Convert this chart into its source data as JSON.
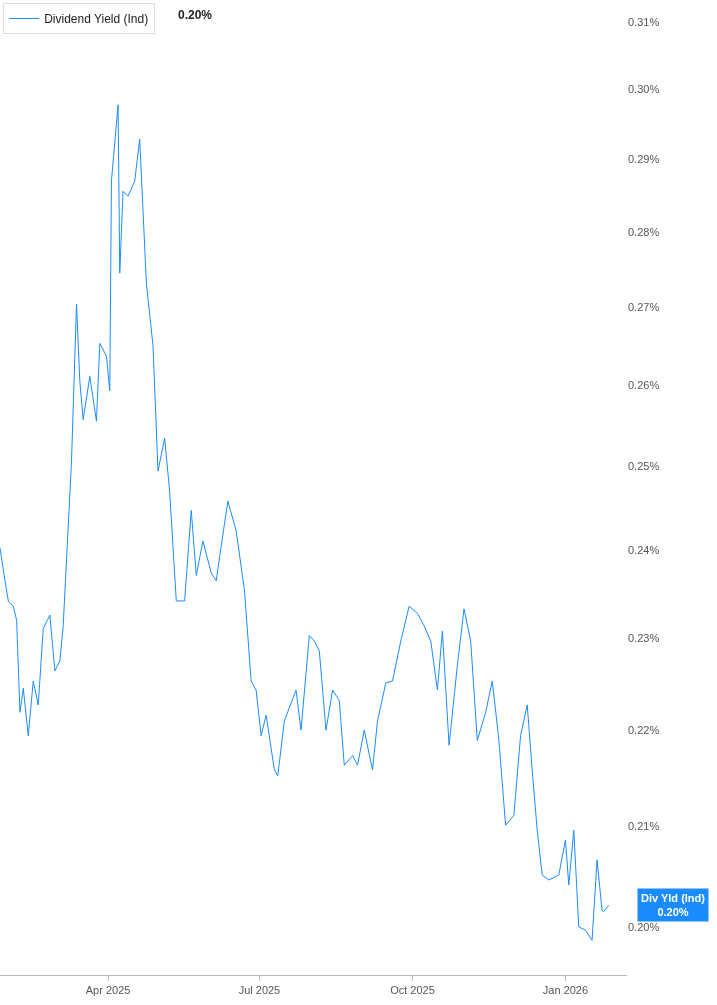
{
  "chart_data": {
    "type": "line",
    "log": "y",
    "grid": false,
    "legend": "top left",
    "marker": "none",
    "line_style": "solid",
    "x": [
      "2025-01-26",
      "2025-01-29",
      "2025-01-31",
      "2025-02-03",
      "2025-02-05",
      "2025-02-07",
      "2025-02-09",
      "2025-02-12",
      "2025-02-15",
      "2025-02-18",
      "2025-02-21",
      "2025-02-25",
      "2025-02-28",
      "2025-03-03",
      "2025-03-05",
      "2025-03-10",
      "2025-03-13",
      "2025-03-15",
      "2025-03-17",
      "2025-03-21",
      "2025-03-25",
      "2025-03-27",
      "2025-03-31",
      "2025-04-02",
      "2025-04-03",
      "2025-04-07",
      "2025-04-08",
      "2025-04-10",
      "2025-04-13",
      "2025-04-17",
      "2025-04-20",
      "2025-04-24",
      "2025-04-28",
      "2025-05-01",
      "2025-05-05",
      "2025-05-08",
      "2025-05-12",
      "2025-05-17",
      "2025-05-21",
      "2025-05-24",
      "2025-05-28",
      "2025-06-02",
      "2025-06-05",
      "2025-06-08",
      "2025-06-12",
      "2025-06-17",
      "2025-06-22",
      "2025-06-26",
      "2025-06-29",
      "2025-07-02",
      "2025-07-05",
      "2025-07-10",
      "2025-07-12",
      "2025-07-16",
      "2025-07-23",
      "2025-07-26",
      "2025-07-31",
      "2025-08-03",
      "2025-08-06",
      "2025-08-10",
      "2025-08-14",
      "2025-08-18",
      "2025-08-21",
      "2025-08-26",
      "2025-08-29",
      "2025-09-02",
      "2025-09-07",
      "2025-09-10",
      "2025-09-15",
      "2025-09-19",
      "2025-09-24",
      "2025-09-29",
      "2025-10-04",
      "2025-10-08",
      "2025-10-12",
      "2025-10-16",
      "2025-10-19",
      "2025-10-23",
      "2025-10-28",
      "2025-11-01",
      "2025-11-05",
      "2025-11-09",
      "2025-11-14",
      "2025-11-18",
      "2025-11-22",
      "2025-11-26",
      "2025-12-01",
      "2025-12-05",
      "2025-12-09",
      "2025-12-12",
      "2025-12-15",
      "2025-12-18",
      "2025-12-22",
      "2025-12-28",
      "2026-01-01",
      "2026-01-03",
      "2026-01-06",
      "2026-01-09",
      "2026-01-13",
      "2026-01-17",
      "2026-01-20",
      "2026-01-23",
      "2026-01-24",
      "2026-01-27"
    ],
    "series": [
      {
        "name": "Dividend Yield (Ind)",
        "color": "#1a8cff",
        "values": [
          0.2403,
          0.2365,
          0.2342,
          0.2336,
          0.232,
          0.2219,
          0.2245,
          0.2194,
          0.2253,
          0.2227,
          0.2311,
          0.2326,
          0.2264,
          0.2275,
          0.2314,
          0.2506,
          0.2704,
          0.2605,
          0.2557,
          0.2611,
          0.2555,
          0.2653,
          0.2637,
          0.2593,
          0.287,
          0.2978,
          0.2745,
          0.2856,
          0.2849,
          0.287,
          0.2929,
          0.2732,
          0.265,
          0.2494,
          0.2534,
          0.247,
          0.2342,
          0.2342,
          0.2447,
          0.2371,
          0.2411,
          0.2374,
          0.2365,
          0.2405,
          0.2458,
          0.2423,
          0.2354,
          0.2253,
          0.2243,
          0.2194,
          0.2216,
          0.2158,
          0.2152,
          0.221,
          0.2243,
          0.22,
          0.2303,
          0.2297,
          0.2286,
          0.22,
          0.2243,
          0.2232,
          0.2163,
          0.2173,
          0.2163,
          0.22,
          0.2158,
          0.221,
          0.2251,
          0.2253,
          0.2297,
          0.2336,
          0.2328,
          0.2314,
          0.2297,
          0.2243,
          0.2308,
          0.2184,
          0.227,
          0.2333,
          0.2297,
          0.2189,
          0.2219,
          0.2253,
          0.2189,
          0.2101,
          0.2111,
          0.2194,
          0.2227,
          0.2158,
          0.2096,
          0.2051,
          0.2046,
          0.2051,
          0.2086,
          0.2041,
          0.2096,
          0.2,
          0.1997,
          0.1987,
          0.2066,
          0.2016,
          0.2015,
          0.2021
        ]
      }
    ],
    "xlim": [
      "2025-01-26",
      "2026-02-07"
    ],
    "xticks": [
      {
        "value": "2025-04-01",
        "label": "Apr 2025"
      },
      {
        "value": "2025-07-01",
        "label": "Jul 2025"
      },
      {
        "value": "2025-10-01",
        "label": "Oct 2025"
      },
      {
        "value": "2026-01-01",
        "label": "Jan 2026"
      }
    ],
    "ylim": [
      0.1954,
      0.313
    ],
    "yticks": [
      {
        "value": 0.2,
        "label": "0.20%"
      },
      {
        "value": 0.21,
        "label": "0.21%"
      },
      {
        "value": 0.22,
        "label": "0.22%"
      },
      {
        "value": 0.23,
        "label": "0.23%"
      },
      {
        "value": 0.24,
        "label": "0.24%"
      },
      {
        "value": 0.25,
        "label": "0.25%"
      },
      {
        "value": 0.26,
        "label": "0.26%"
      },
      {
        "value": 0.27,
        "label": "0.27%"
      },
      {
        "value": 0.28,
        "label": "0.28%"
      },
      {
        "value": 0.29,
        "label": "0.29%"
      },
      {
        "value": 0.3,
        "label": "0.30%"
      },
      {
        "value": 0.31,
        "label": "0.31%"
      }
    ],
    "annotations": [
      "0.20%",
      {
        "text": "Div Yld (Ind)\n0.20%",
        "x": "2026-01-27",
        "y": 0.2021
      }
    ]
  }
}
